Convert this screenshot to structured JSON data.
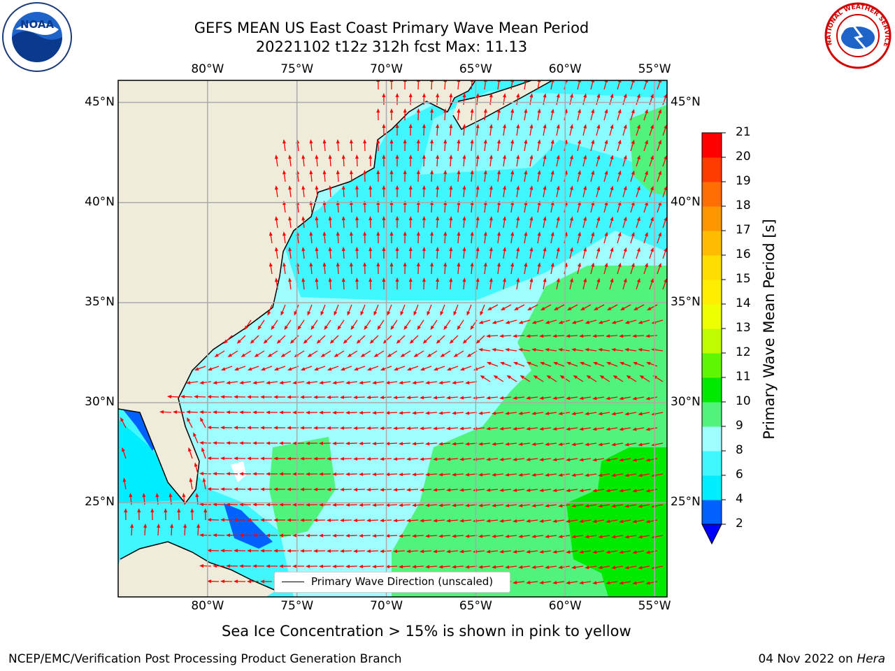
{
  "title": {
    "line1": "GEFS MEAN US East Coast Primary Wave Mean Period",
    "line2": "20221102 t12z 312h fcst   Max: 11.13"
  },
  "logos": {
    "left": {
      "icon": "noaa-logo",
      "text": "NOAA"
    },
    "right": {
      "icon": "nws-logo",
      "ring_text": "NATIONAL WEATHER SERVICE"
    }
  },
  "map": {
    "extent": {
      "lon_min": -85,
      "lon_max": -54.3,
      "lat_min": 20.3,
      "lat_max": 46.1
    },
    "lon_ticks": [
      {
        "lon": -80,
        "label": "80°W"
      },
      {
        "lon": -75,
        "label": "75°W"
      },
      {
        "lon": -70,
        "label": "70°W"
      },
      {
        "lon": -65,
        "label": "65°W"
      },
      {
        "lon": -60,
        "label": "60°W"
      },
      {
        "lon": -55,
        "label": "55°W"
      }
    ],
    "lat_ticks": [
      {
        "lat": 45,
        "label": "45°N"
      },
      {
        "lat": 40,
        "label": "40°N"
      },
      {
        "lat": 35,
        "label": "35°N"
      },
      {
        "lat": 30,
        "label": "30°N"
      },
      {
        "lat": 25,
        "label": "25°N"
      }
    ],
    "grid": true,
    "land_color": "#efecdc",
    "arrow_color": "#ff0000",
    "legend": {
      "label": "Primary Wave Direction (unscaled)",
      "position": "bottom-center"
    }
  },
  "colorbar": {
    "label": "Primary Wave Mean Period [s]",
    "extend": "min",
    "levels": [
      2,
      4,
      6,
      8,
      9,
      10,
      11,
      12,
      13,
      14,
      15,
      16,
      17,
      18,
      19,
      20,
      21
    ],
    "colors": [
      "#0061ff",
      "#00ecff",
      "#40f7ff",
      "#a0fdff",
      "#50f37c",
      "#00ea00",
      "#5ef600",
      "#c1fb00",
      "#edff00",
      "#ffee00",
      "#ffdd00",
      "#ffbb00",
      "#ff9600",
      "#ff6e00",
      "#ff3c00",
      "#ff0000"
    ],
    "under_color": "#0000ff"
  },
  "footnote": "Sea Ice Concentration > 15% is shown in pink to yellow",
  "footer": {
    "left": "NCEP/EMC/Verification Post Processing Product Generation Branch",
    "date": "04 Nov 2022 on ",
    "host": "Hera"
  }
}
